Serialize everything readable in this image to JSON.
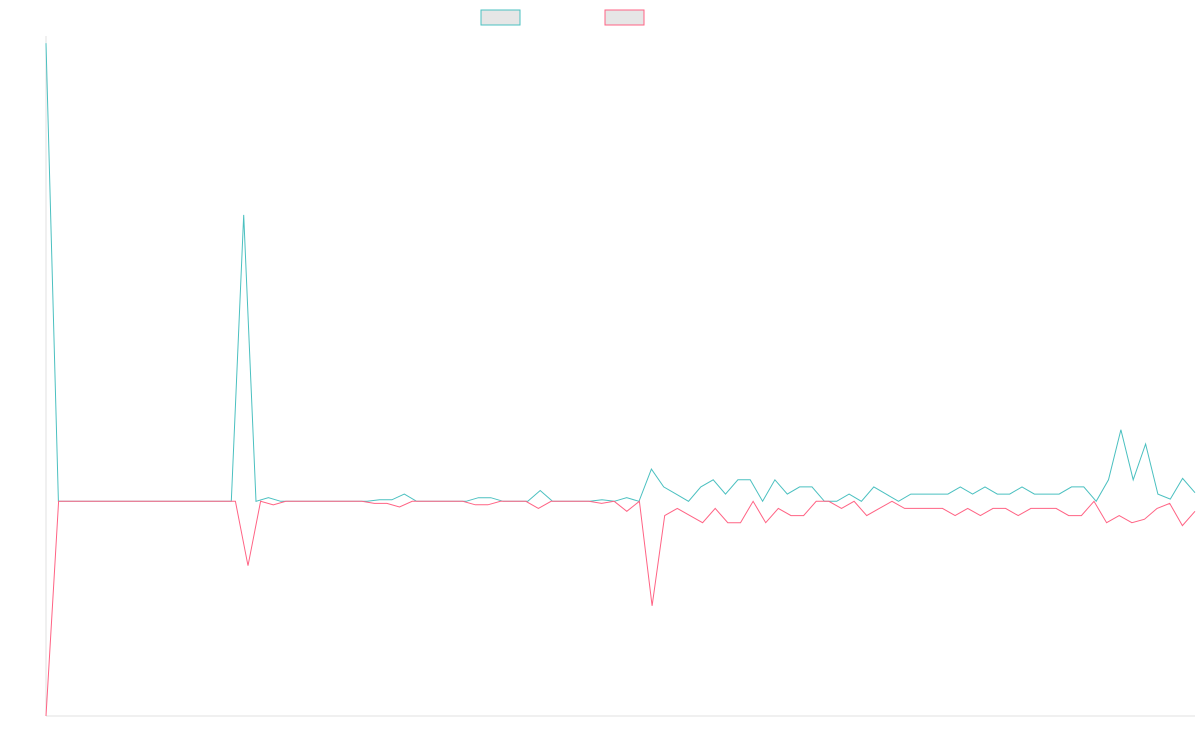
{
  "chart_data": {
    "type": "line",
    "title": "",
    "xlabel": "",
    "ylabel": "",
    "grid": false,
    "legend_position": "top-center",
    "ylim": [
      -30,
      65
    ],
    "series": [
      {
        "color": "#4bc0c0",
        "values": [
          64,
          0,
          0,
          0,
          0,
          0,
          0,
          0,
          0,
          0,
          0,
          0,
          0,
          0,
          0,
          0,
          40,
          0,
          0.5,
          0,
          0,
          0,
          0,
          0,
          0,
          0,
          0,
          0.2,
          0.2,
          1,
          0,
          0,
          0,
          0,
          0,
          0.5,
          0.5,
          0,
          0,
          0,
          1.5,
          0,
          0,
          0,
          0,
          0.2,
          0,
          0.5,
          0,
          4.5,
          2,
          1,
          0,
          2,
          3,
          1,
          3,
          3,
          0,
          3,
          1,
          2,
          2,
          0,
          0,
          1,
          0,
          2,
          1,
          0,
          1,
          1,
          1,
          1,
          2,
          1,
          2,
          1,
          1,
          2,
          1,
          1,
          1,
          2,
          2,
          0,
          3,
          10,
          3,
          8,
          1,
          0.3,
          3.2,
          1.2
        ]
      },
      {
        "color": "#ff6384",
        "values": [
          -30,
          0,
          0,
          0,
          0,
          0,
          0,
          0,
          0,
          0,
          0,
          0,
          0,
          0,
          0,
          0,
          -9,
          0,
          -0.5,
          0,
          0,
          0,
          0,
          0,
          0,
          0,
          -0.3,
          -0.3,
          -0.8,
          0,
          0,
          0,
          0,
          0,
          -0.5,
          -0.5,
          0,
          0,
          0,
          -1,
          0,
          0,
          0,
          0,
          -0.3,
          0,
          -1.4,
          0,
          -14.6,
          -2,
          -1,
          -2,
          -3,
          -1,
          -3,
          -3,
          0,
          -3,
          -1,
          -2,
          -2,
          0,
          0,
          -1,
          0,
          -2,
          -1,
          0,
          -1,
          -1,
          -1,
          -1,
          -2,
          -1,
          -2,
          -1,
          -1,
          -2,
          -1,
          -1,
          -1,
          -2,
          -2,
          0,
          -3,
          -2,
          -3,
          -2.5,
          -1,
          -0.3,
          -3.4,
          -1.4
        ]
      }
    ]
  }
}
